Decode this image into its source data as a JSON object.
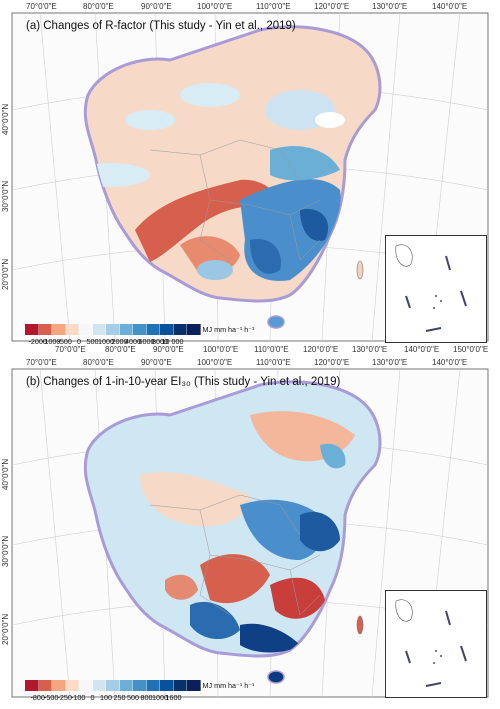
{
  "panels": [
    {
      "id": "a",
      "title": "(a) Changes of R-factor (This study - Yin et al., 2019)",
      "lon_labels": [
        "70°0'0\"E",
        "80°0'0\"E",
        "90°0'0\"E",
        "100°0'0\"E",
        "110°0'0\"E",
        "120°0'0\"E",
        "130°0'0\"E",
        "140°0'0\"E",
        "150°0'0\"E"
      ],
      "lat_labels": [
        "40°0'0\"N",
        "30°0'0\"N",
        "20°0'0\"N"
      ],
      "legend": {
        "colors": [
          "#b2182b",
          "#d6604d",
          "#f4a582",
          "#fddbc7",
          "#f7f7f7",
          "#d1e5f0",
          "#a6cde8",
          "#6baed6",
          "#4292c6",
          "#2171b5",
          "#08519c",
          "#08306b",
          "#0a1f5c"
        ],
        "labels": [
          "-2000",
          "-1000",
          "-500",
          "0",
          "500",
          "1000",
          "2000",
          "4000",
          "6000",
          "8000",
          "10 000"
        ],
        "unit": "MJ mm ha⁻¹ h⁻¹"
      }
    },
    {
      "id": "b",
      "title": "(b) Changes of 1-in-10-year EI₃₀ (This study - Yin et al., 2019)",
      "lon_labels": [
        "70°0'0\"E",
        "80°0'0\"E",
        "90°0'0\"E",
        "100°0'0\"E",
        "110°0'0\"E",
        "120°0'0\"E",
        "130°0'0\"E",
        "140°0'0\"E",
        "150°0'0\"E"
      ],
      "lat_labels": [
        "40°0'0\"N",
        "30°0'0\"N",
        "20°0'0\"N"
      ],
      "legend": {
        "colors": [
          "#b2182b",
          "#d6604d",
          "#f4a582",
          "#fddbc7",
          "#f7f7f7",
          "#d1e5f0",
          "#a6cde8",
          "#6baed6",
          "#4292c6",
          "#2171b5",
          "#08519c",
          "#08306b",
          "#0a1f5c"
        ],
        "labels": [
          "-800",
          "-500",
          "-250",
          "-100",
          "0",
          "100",
          "250",
          "500",
          "800",
          "1000",
          "1600"
        ],
        "unit": "MJ mm ha⁻¹ h⁻¹"
      }
    }
  ]
}
